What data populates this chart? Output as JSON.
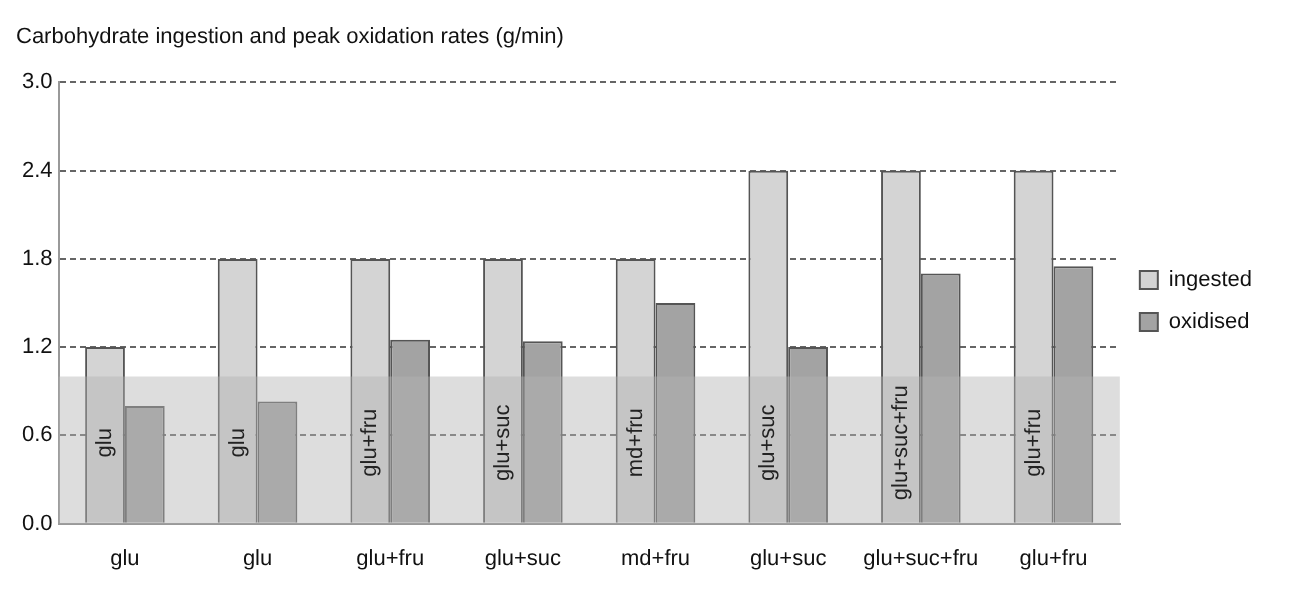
{
  "chart_data": {
    "type": "bar",
    "title": "Carbohydrate ingestion and peak oxidation rates (g/min)",
    "categories": [
      "glu",
      "glu",
      "glu+fru",
      "glu+suc",
      "md+fru",
      "glu+suc",
      "glu+suc+fru",
      "glu+fru"
    ],
    "series": [
      {
        "name": "ingested",
        "color": "#d4d4d4",
        "values": [
          1.2,
          1.8,
          1.8,
          1.8,
          1.8,
          2.4,
          2.4,
          2.4
        ]
      },
      {
        "name": "oxidised",
        "color": "#a3a3a3",
        "values": [
          0.8,
          0.83,
          1.25,
          1.24,
          1.5,
          1.2,
          1.7,
          1.75
        ]
      }
    ],
    "annotations": [
      "glu",
      "glu",
      "glu+fru",
      "glu+suc",
      "md+fru",
      "glu+suc",
      "glu+suc+fru",
      "glu+fru"
    ],
    "bands": [
      {
        "axis": "y",
        "from": 0,
        "to": 1.0,
        "color": "#b4b4b4"
      }
    ],
    "ylim": [
      0,
      3.0
    ],
    "yticks": [
      {
        "value": 0,
        "label": "0.0"
      },
      {
        "value": 0.6,
        "label": "0.6"
      },
      {
        "value": 1.2,
        "label": "1.2"
      },
      {
        "value": 1.8,
        "label": "1.8"
      },
      {
        "value": 2.4,
        "label": "2.4"
      },
      {
        "value": 3.0,
        "label": "3.0"
      }
    ],
    "grid": "y",
    "line_style": "dashed",
    "legend": "right"
  }
}
